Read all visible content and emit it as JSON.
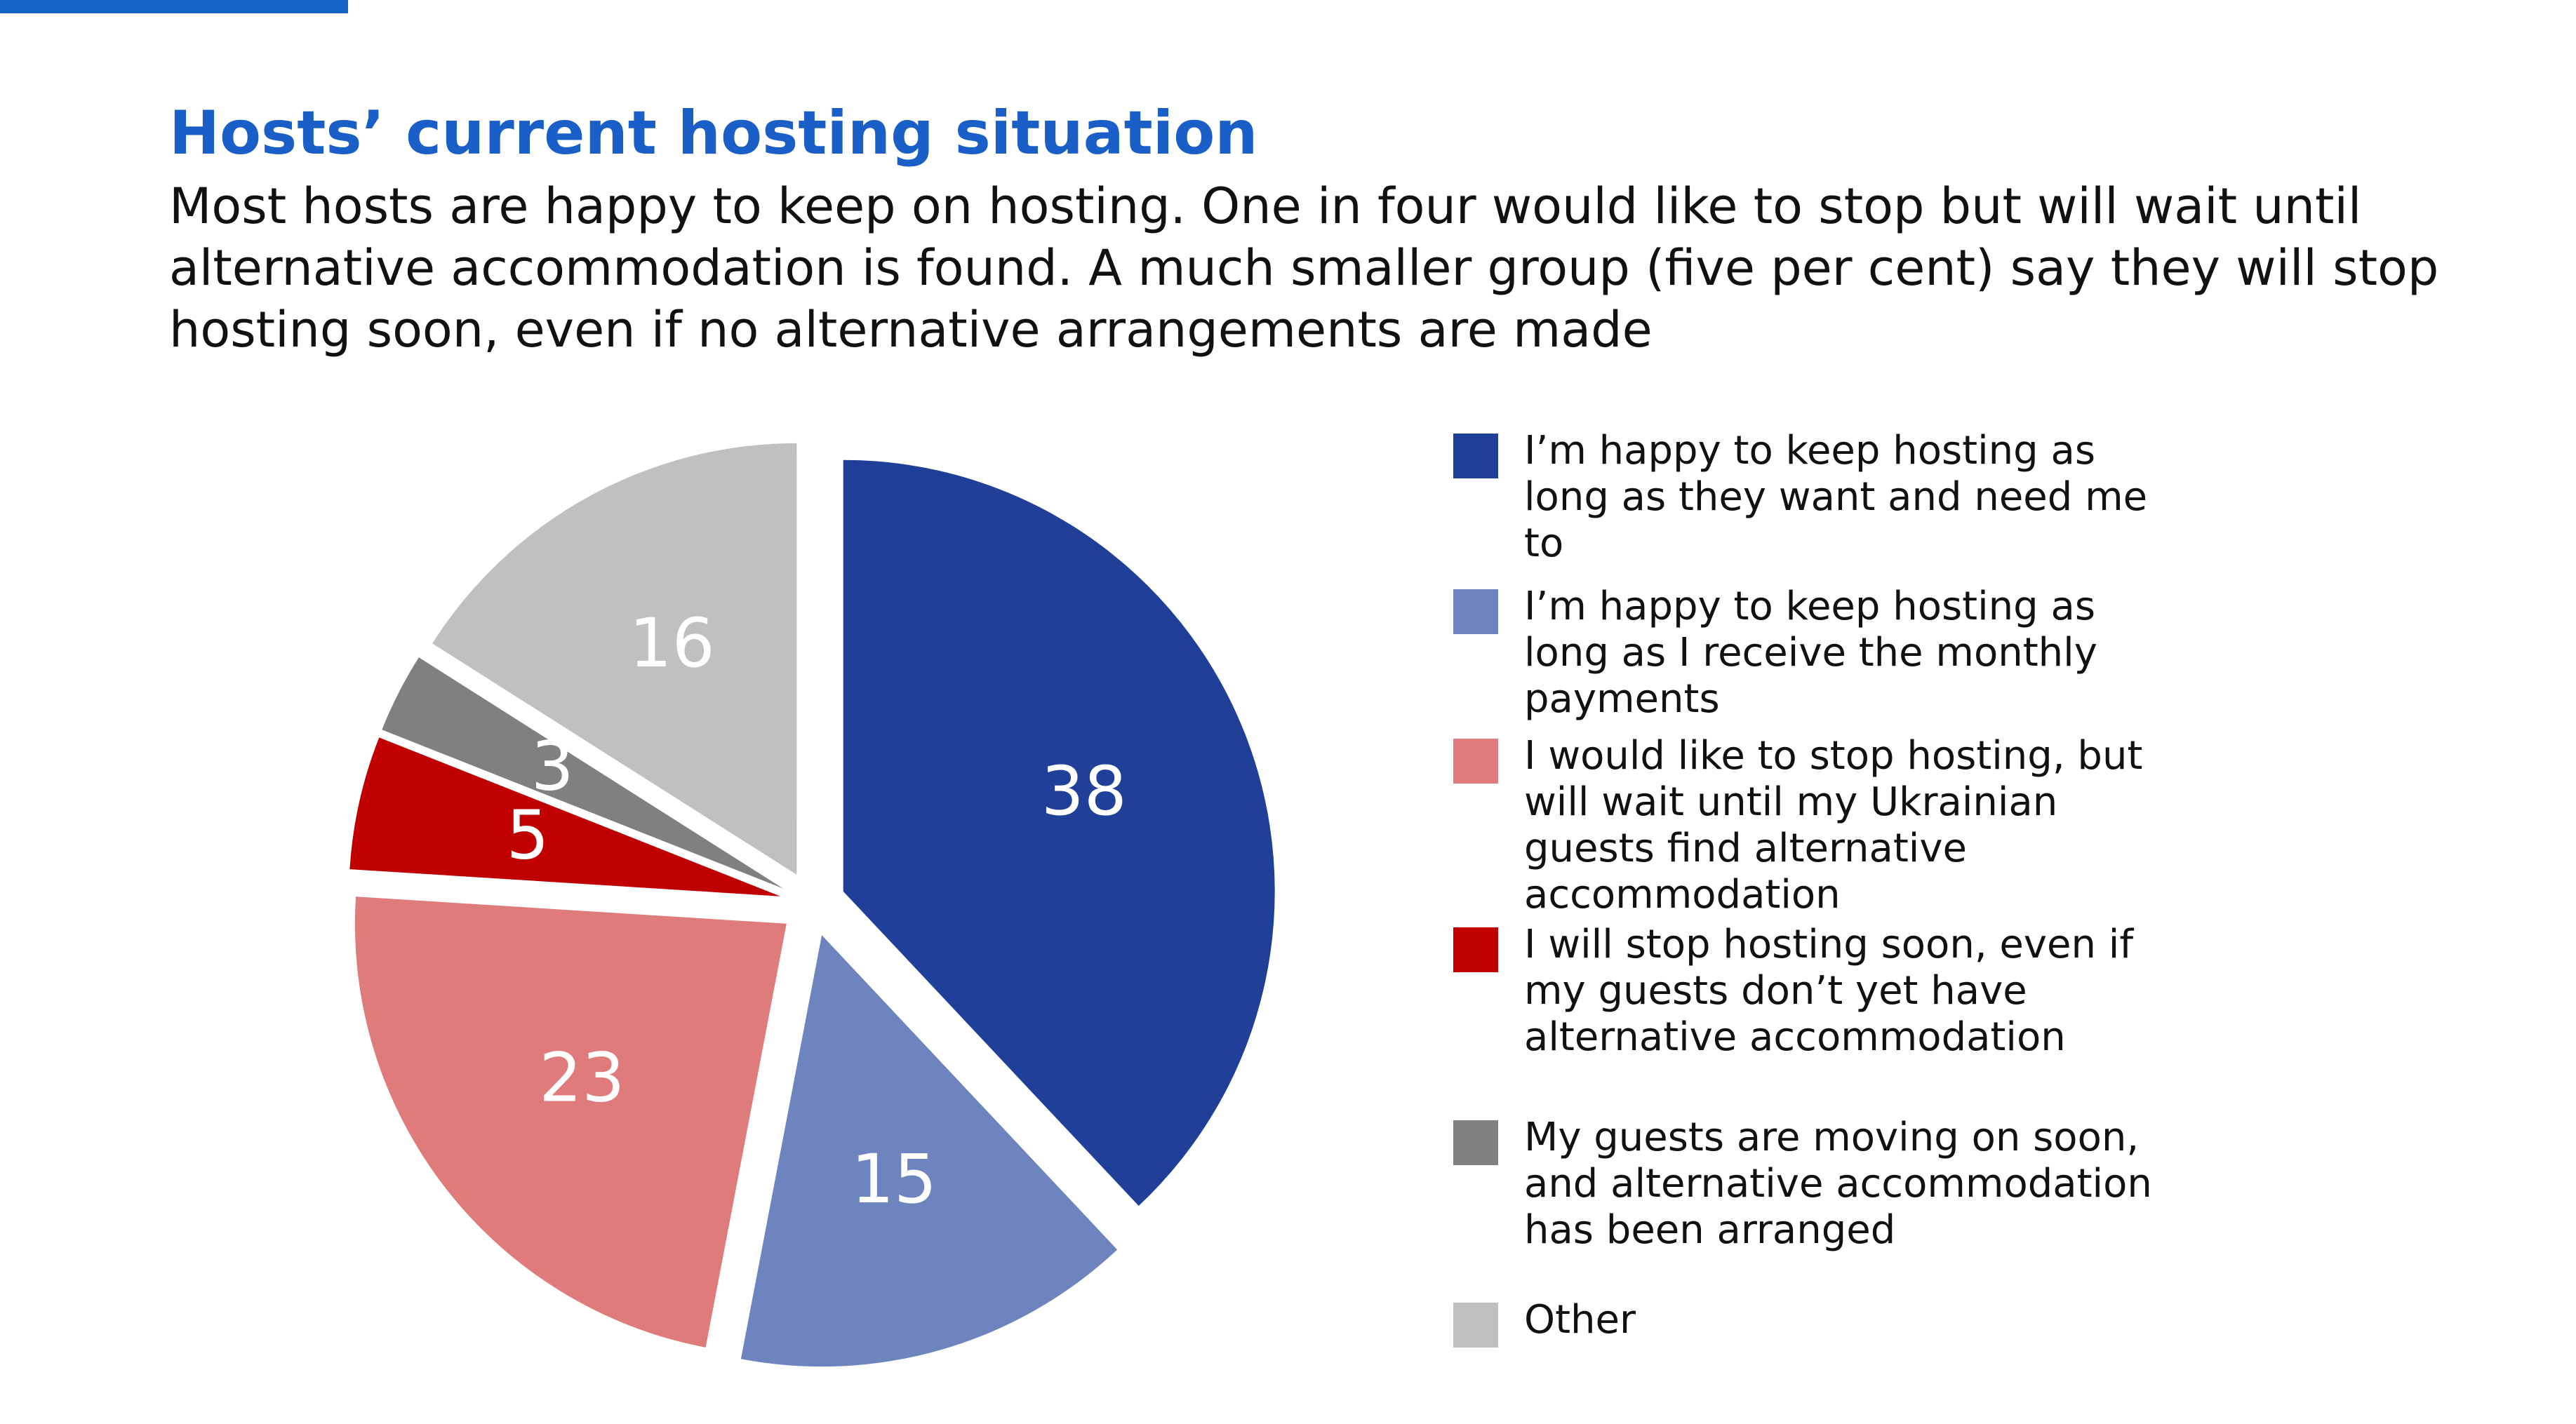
{
  "chart_data": {
    "type": "pie",
    "title": "Hosts’ current hosting situation",
    "subtitle": "Most hosts are happy to keep on hosting. One in four would like to stop but will wait until alternative accommodation is found. A much smaller group (five per cent) say they will stop hosting soon, even if no alternative arrangements are made",
    "categories": [
      "I’m happy to keep hosting as long as they want and need me to",
      "I’m happy to keep hosting as long as I receive the monthly payments",
      "I would like to stop hosting, but will wait until my Ukrainian guests find alternative accommodation",
      "I will stop hosting soon, even if my guests don’t yet have alternative accommodation",
      "My guests are moving on soon, and alternative accommodation has been arranged",
      "Other"
    ],
    "values": [
      38,
      15,
      23,
      5,
      3,
      16
    ],
    "colors": [
      "#1f3f99",
      "#6d84bf",
      "#e07b7b",
      "#c00000",
      "#808080",
      "#c0c0c0"
    ],
    "legend": "right"
  }
}
